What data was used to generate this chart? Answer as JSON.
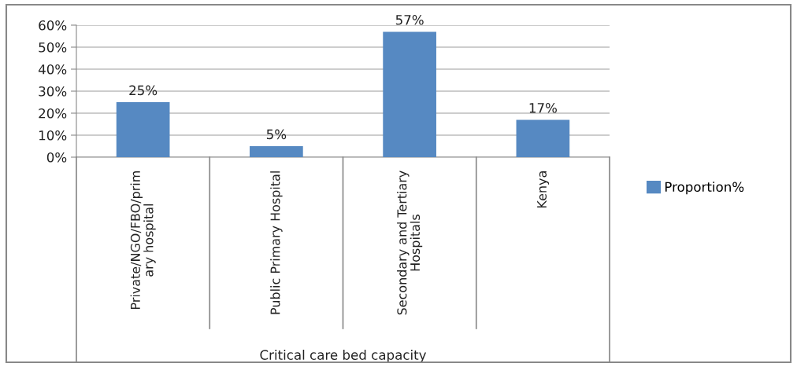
{
  "chart_data": {
    "type": "bar",
    "xlabel": "Critical care bed capacity",
    "categories": [
      "Private/NGO/FBO/prim\nary hospital",
      "Public Primary Hospital",
      "Secondary and Tertiary\nHospitals",
      "Kenya"
    ],
    "series": [
      {
        "name": "Proportion%",
        "color": "#5689c2",
        "values": [
          25,
          5,
          57,
          17
        ],
        "value_labels": [
          "25%",
          "5%",
          "57%",
          "17%"
        ]
      }
    ],
    "ylim": [
      0,
      60
    ],
    "yticks": [
      {
        "value": 0,
        "label": "0%"
      },
      {
        "value": 10,
        "label": "10%"
      },
      {
        "value": 20,
        "label": "20%"
      },
      {
        "value": 30,
        "label": "30%"
      },
      {
        "value": 40,
        "label": "40%"
      },
      {
        "value": 50,
        "label": "50%"
      },
      {
        "value": 60,
        "label": "60%"
      }
    ],
    "grid": "y",
    "legend": "right"
  }
}
